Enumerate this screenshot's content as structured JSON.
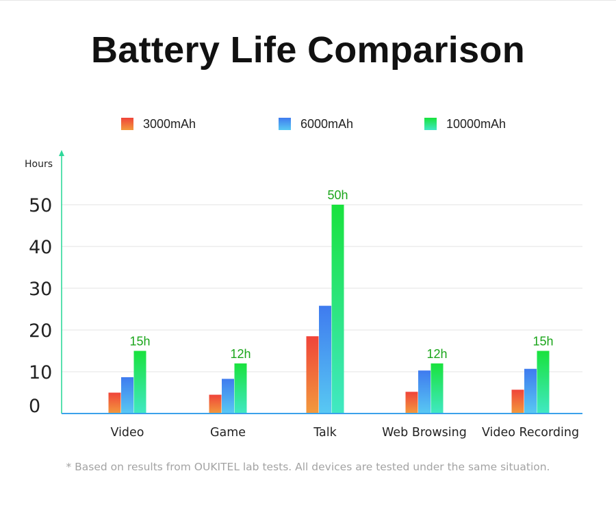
{
  "page": {
    "title": "Battery Life Comparison",
    "footnote": "* Based on results from OUKITEL lab tests. All devices are tested under the same situation."
  },
  "chart_data": {
    "type": "bar",
    "title": "Battery Life Comparison",
    "xlabel": "",
    "ylabel": "Hours",
    "ylim": [
      0,
      50
    ],
    "yticks": [
      0,
      10,
      20,
      30,
      40,
      50
    ],
    "grid": true,
    "legend_position": "top",
    "categories": [
      "Video",
      "Game",
      "Talk",
      "Web Browsing",
      "Video Recording"
    ],
    "series": [
      {
        "name": "3000mAh",
        "color": "#f0443a",
        "color_light": "#f29a3c",
        "values": [
          5,
          4.5,
          18.5,
          5.2,
          5.7
        ]
      },
      {
        "name": "6000mAh",
        "color": "#3f7bef",
        "color_light": "#58c9f3",
        "values": [
          8.7,
          8.3,
          25.8,
          10.3,
          10.7
        ]
      },
      {
        "name": "10000mAh",
        "color": "#19e23d",
        "color_light": "#41e8c4",
        "values": [
          15,
          12,
          50,
          12,
          15
        ]
      }
    ],
    "data_labels": [
      "15h",
      "12h",
      "50h",
      "12h",
      "15h"
    ],
    "data_label_color": "#1aa51a",
    "axis_color": "#2fd89a",
    "baseline_color": "#3ba1ea",
    "grid_color": "#e3e3e3"
  }
}
